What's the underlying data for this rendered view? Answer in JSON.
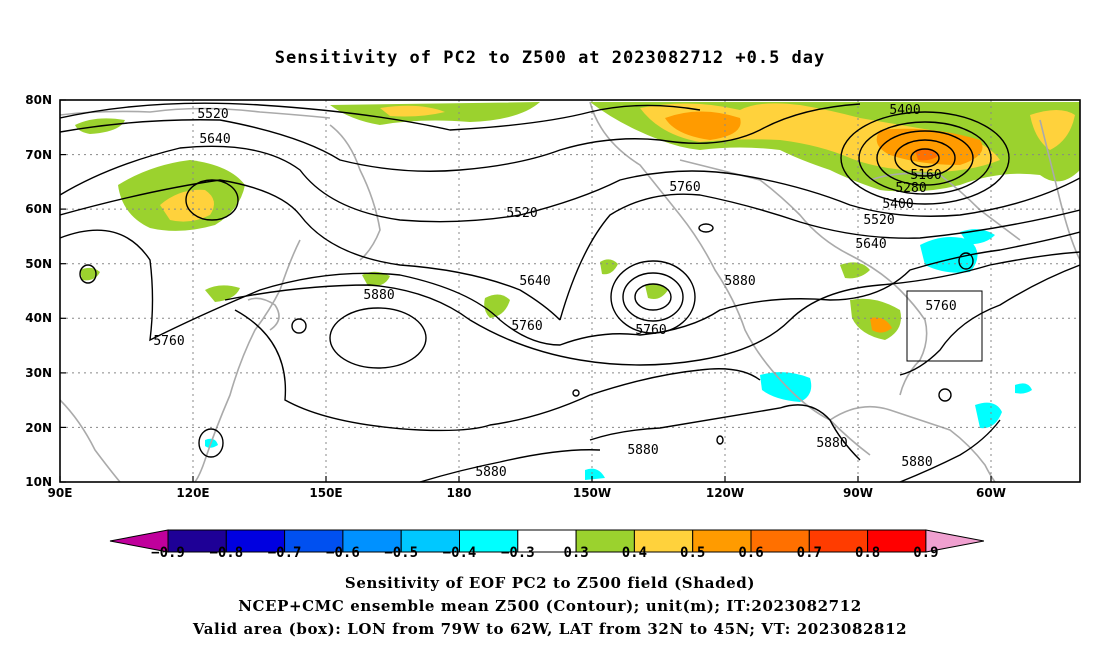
{
  "title": "Sensitivity of PC2 to Z500 at 2023082712 +0.5 day",
  "map": {
    "lat_labels": [
      "80N",
      "70N",
      "60N",
      "50N",
      "40N",
      "30N",
      "20N",
      "10N"
    ],
    "lon_labels": [
      "90E",
      "120E",
      "150E",
      "180",
      "150W",
      "120W",
      "90W",
      "60W"
    ],
    "contour_labels": [
      "5400",
      "5520",
      "5640",
      "5520",
      "5760",
      "5160",
      "5280",
      "5400",
      "5520",
      "5640",
      "5640",
      "5880",
      "5760",
      "5760",
      "5880",
      "5760",
      "5760",
      "5880",
      "5880",
      "5880",
      "5880"
    ],
    "box": {
      "lon": [
        "79W",
        "62W"
      ],
      "lat": [
        "32N",
        "45N"
      ]
    }
  },
  "colorbar": {
    "labels": [
      "-0.9",
      "-0.8",
      "-0.7",
      "-0.6",
      "-0.5",
      "-0.4",
      "-0.3",
      "0.3",
      "0.4",
      "0.5",
      "0.6",
      "0.7",
      "0.8",
      "0.9"
    ],
    "colors": [
      "#c0009c",
      "#1e0096",
      "#0000e0",
      "#0050f0",
      "#0091ff",
      "#00c8ff",
      "#00ffff",
      "#ffffff",
      "#9bd22e",
      "#ffd23c",
      "#ff9b00",
      "#ff7000",
      "#ff3c00",
      "#ff0000",
      "#f0a0d0"
    ]
  },
  "captions": {
    "line1": "Sensitivity of EOF PC2 to Z500 field (Shaded)",
    "line2": "NCEP+CMC ensemble mean Z500 (Contour); unit(m); IT:2023082712",
    "line3": "Valid area (box): LON from 79W to 62W, LAT from 32N to 45N; VT: 2023082812"
  }
}
